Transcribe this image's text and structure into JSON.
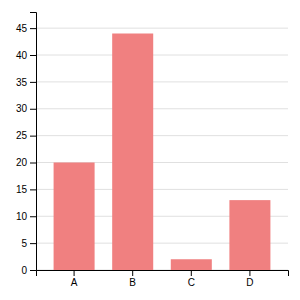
{
  "chart_data": {
    "type": "bar",
    "categories": [
      "A",
      "B",
      "C",
      "D"
    ],
    "values": [
      20,
      44,
      2,
      13
    ],
    "color": "#F08080",
    "ylim": [
      0,
      48
    ],
    "yticks": [
      0,
      5,
      10,
      15,
      20,
      25,
      30,
      35,
      40,
      45
    ],
    "grid": true
  }
}
